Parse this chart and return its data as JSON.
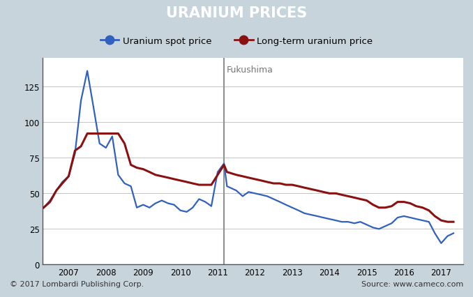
{
  "title": "URANIUM PRICES",
  "title_bg": "#000000",
  "title_color": "#ffffff",
  "footer_bg": "#c8d4dc",
  "chart_bg": "#ffffff",
  "outer_bg": "#c8d4dc",
  "footer_left": "© 2017 Lombardi Publishing Corp.",
  "footer_right": "Source: www.cameco.com",
  "spot_color": "#3060c0",
  "longterm_color": "#8b1010",
  "fukushima_line_color": "#909090",
  "fukushima_label": "Fukushima",
  "fukushima_x": 2011.17,
  "legend_spot": "Uranium spot price",
  "legend_longterm": "Long-term uranium price",
  "ylim": [
    0,
    145
  ],
  "yticks": [
    0,
    25,
    50,
    75,
    100,
    125
  ],
  "xlim_start": 2006.3,
  "xlim_end": 2017.6,
  "xtick_labels": [
    "2007",
    "2008",
    "2009",
    "2010",
    "2011",
    "2012",
    "2013",
    "2014",
    "2015",
    "2016",
    "2017"
  ],
  "xtick_values": [
    2007,
    2008,
    2009,
    2010,
    2011,
    2012,
    2013,
    2014,
    2015,
    2016,
    2017
  ],
  "spot_data": [
    [
      2006.33,
      40
    ],
    [
      2006.5,
      45
    ],
    [
      2006.67,
      52
    ],
    [
      2006.83,
      58
    ],
    [
      2007.0,
      62
    ],
    [
      2007.17,
      78
    ],
    [
      2007.33,
      115
    ],
    [
      2007.5,
      136
    ],
    [
      2007.67,
      110
    ],
    [
      2007.83,
      85
    ],
    [
      2008.0,
      82
    ],
    [
      2008.17,
      90
    ],
    [
      2008.33,
      63
    ],
    [
      2008.5,
      57
    ],
    [
      2008.67,
      55
    ],
    [
      2008.83,
      40
    ],
    [
      2009.0,
      42
    ],
    [
      2009.17,
      40
    ],
    [
      2009.33,
      43
    ],
    [
      2009.5,
      45
    ],
    [
      2009.67,
      43
    ],
    [
      2009.83,
      42
    ],
    [
      2010.0,
      38
    ],
    [
      2010.17,
      37
    ],
    [
      2010.33,
      40
    ],
    [
      2010.5,
      46
    ],
    [
      2010.67,
      44
    ],
    [
      2010.83,
      41
    ],
    [
      2011.0,
      65
    ],
    [
      2011.17,
      71
    ],
    [
      2011.25,
      55
    ],
    [
      2011.5,
      52
    ],
    [
      2011.67,
      48
    ],
    [
      2011.83,
      51
    ],
    [
      2012.0,
      50
    ],
    [
      2012.17,
      49
    ],
    [
      2012.33,
      48
    ],
    [
      2012.5,
      46
    ],
    [
      2012.67,
      44
    ],
    [
      2012.83,
      42
    ],
    [
      2013.0,
      40
    ],
    [
      2013.17,
      38
    ],
    [
      2013.33,
      36
    ],
    [
      2013.5,
      35
    ],
    [
      2013.67,
      34
    ],
    [
      2013.83,
      33
    ],
    [
      2014.0,
      32
    ],
    [
      2014.17,
      31
    ],
    [
      2014.33,
      30
    ],
    [
      2014.5,
      30
    ],
    [
      2014.67,
      29
    ],
    [
      2014.83,
      30
    ],
    [
      2015.0,
      28
    ],
    [
      2015.17,
      26
    ],
    [
      2015.33,
      25
    ],
    [
      2015.5,
      27
    ],
    [
      2015.67,
      29
    ],
    [
      2015.83,
      33
    ],
    [
      2016.0,
      34
    ],
    [
      2016.17,
      33
    ],
    [
      2016.33,
      32
    ],
    [
      2016.5,
      31
    ],
    [
      2016.67,
      30
    ],
    [
      2016.83,
      22
    ],
    [
      2017.0,
      15
    ],
    [
      2017.17,
      20
    ],
    [
      2017.33,
      22
    ]
  ],
  "longterm_data": [
    [
      2006.33,
      40
    ],
    [
      2006.5,
      44
    ],
    [
      2006.67,
      52
    ],
    [
      2006.83,
      57
    ],
    [
      2007.0,
      62
    ],
    [
      2007.17,
      80
    ],
    [
      2007.33,
      83
    ],
    [
      2007.5,
      92
    ],
    [
      2007.67,
      92
    ],
    [
      2007.83,
      92
    ],
    [
      2008.0,
      92
    ],
    [
      2008.17,
      92
    ],
    [
      2008.33,
      92
    ],
    [
      2008.5,
      85
    ],
    [
      2008.67,
      70
    ],
    [
      2008.83,
      68
    ],
    [
      2009.0,
      67
    ],
    [
      2009.17,
      65
    ],
    [
      2009.33,
      63
    ],
    [
      2009.5,
      62
    ],
    [
      2009.67,
      61
    ],
    [
      2009.83,
      60
    ],
    [
      2010.0,
      59
    ],
    [
      2010.17,
      58
    ],
    [
      2010.33,
      57
    ],
    [
      2010.5,
      56
    ],
    [
      2010.67,
      56
    ],
    [
      2010.83,
      56
    ],
    [
      2011.0,
      63
    ],
    [
      2011.17,
      70
    ],
    [
      2011.25,
      65
    ],
    [
      2011.5,
      63
    ],
    [
      2011.67,
      62
    ],
    [
      2011.83,
      61
    ],
    [
      2012.0,
      60
    ],
    [
      2012.17,
      59
    ],
    [
      2012.33,
      58
    ],
    [
      2012.5,
      57
    ],
    [
      2012.67,
      57
    ],
    [
      2012.83,
      56
    ],
    [
      2013.0,
      56
    ],
    [
      2013.17,
      55
    ],
    [
      2013.33,
      54
    ],
    [
      2013.5,
      53
    ],
    [
      2013.67,
      52
    ],
    [
      2013.83,
      51
    ],
    [
      2014.0,
      50
    ],
    [
      2014.17,
      50
    ],
    [
      2014.33,
      49
    ],
    [
      2014.5,
      48
    ],
    [
      2014.67,
      47
    ],
    [
      2014.83,
      46
    ],
    [
      2015.0,
      45
    ],
    [
      2015.17,
      42
    ],
    [
      2015.33,
      40
    ],
    [
      2015.5,
      40
    ],
    [
      2015.67,
      41
    ],
    [
      2015.83,
      44
    ],
    [
      2016.0,
      44
    ],
    [
      2016.17,
      43
    ],
    [
      2016.33,
      41
    ],
    [
      2016.5,
      40
    ],
    [
      2016.67,
      38
    ],
    [
      2016.83,
      34
    ],
    [
      2017.0,
      31
    ],
    [
      2017.17,
      30
    ],
    [
      2017.33,
      30
    ]
  ]
}
